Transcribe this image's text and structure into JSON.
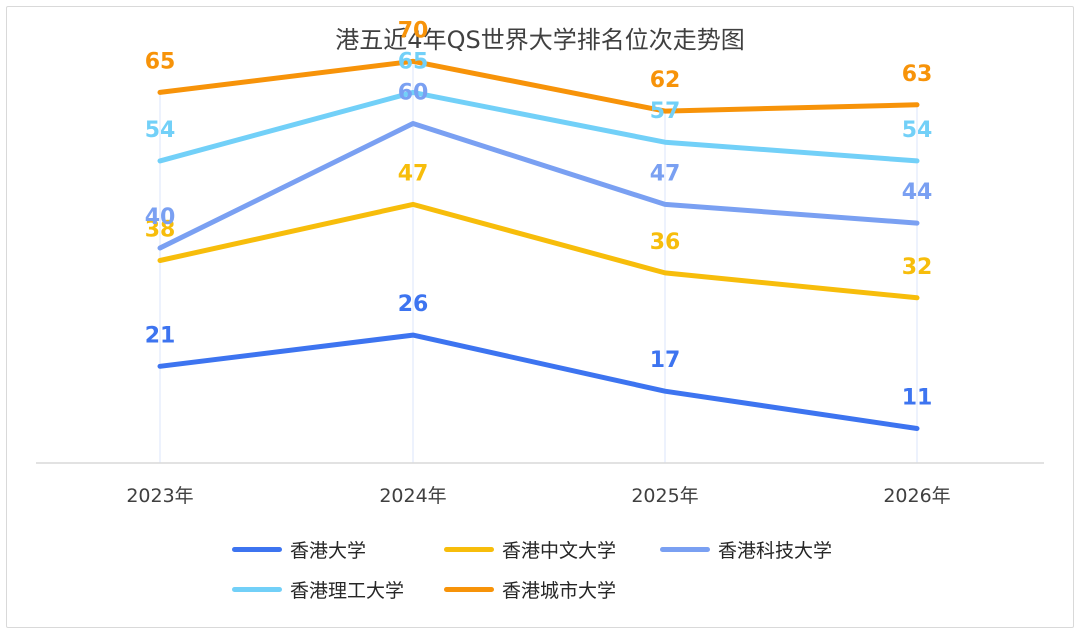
{
  "chart_data": {
    "type": "line",
    "title": "港五近4年QS世界大学排名位次走势图",
    "categories": [
      "2023年",
      "2024年",
      "2025年",
      "2026年"
    ],
    "series": [
      {
        "name": "香港大学",
        "values": [
          21,
          26,
          17,
          11
        ],
        "color": "#3d74f0"
      },
      {
        "name": "香港中文大学",
        "values": [
          38,
          47,
          36,
          32
        ],
        "color": "#f7bd0b"
      },
      {
        "name": "香港科技大学",
        "values": [
          40,
          60,
          47,
          44
        ],
        "color": "#7aa0f2"
      },
      {
        "name": "香港理工大学",
        "values": [
          54,
          65,
          57,
          54
        ],
        "color": "#72d0f8"
      },
      {
        "name": "香港城市大学",
        "values": [
          65,
          70,
          62,
          63
        ],
        "color": "#f79309"
      }
    ],
    "grid": false,
    "legend_position": "bottom"
  }
}
